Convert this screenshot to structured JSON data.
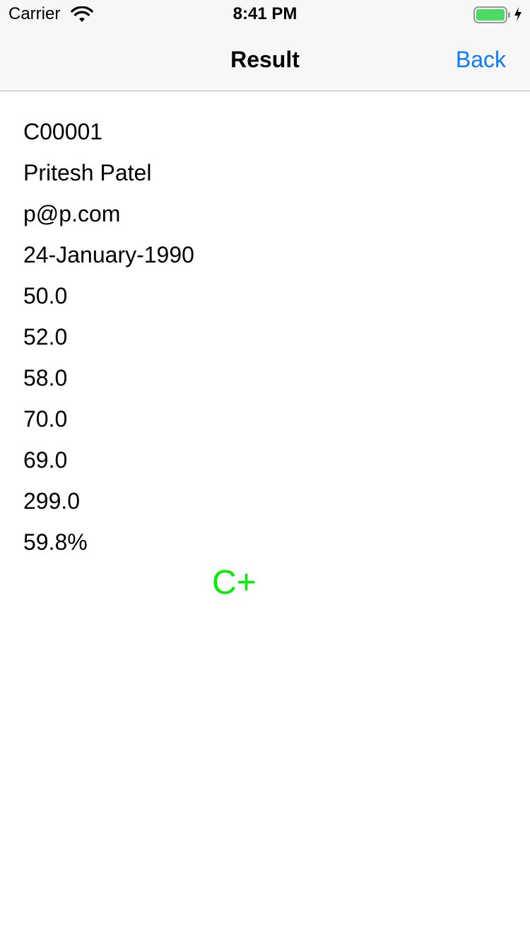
{
  "status_bar": {
    "carrier": "Carrier",
    "time": "8:41 PM",
    "battery_color": "#4cd964",
    "icons": [
      "wifi-icon",
      "battery-icon",
      "charging-icon"
    ]
  },
  "nav": {
    "title": "Result",
    "back_label": "Back",
    "accent_color": "#0a7aff"
  },
  "result": {
    "student_id": "C00001",
    "name": "Pritesh Patel",
    "email": "p@p.com",
    "dob": "24-January-1990",
    "marks": [
      "50.0",
      "52.0",
      "58.0",
      "70.0",
      "69.0"
    ],
    "total": "299.0",
    "percentage": "59.8%",
    "grade": "C+",
    "grade_color": "#00ee00"
  }
}
